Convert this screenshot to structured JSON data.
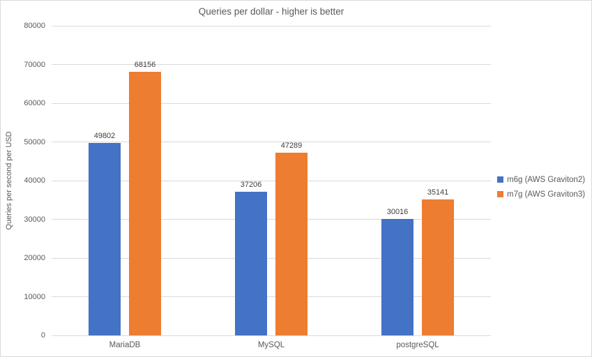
{
  "chart_data": {
    "type": "bar",
    "title": "Queries per dollar - higher is better",
    "ylabel": "Queries per second per USD",
    "xlabel": "",
    "categories": [
      "MariaDB",
      "MySQL",
      "postgreSQL"
    ],
    "series": [
      {
        "name": "m6g (AWS Graviton2)",
        "color": "#4472C4",
        "values": [
          49802,
          37206,
          30016
        ]
      },
      {
        "name": "m7g (AWS Graviton3)",
        "color": "#ED7D31",
        "values": [
          68156,
          47289,
          35141
        ]
      }
    ],
    "ylim": [
      0,
      80000
    ],
    "yticks": [
      0,
      10000,
      20000,
      30000,
      40000,
      50000,
      60000,
      70000,
      80000
    ],
    "grid": true,
    "legend_position": "right",
    "value_labels": true
  },
  "colors": {
    "gridline": "#D9D9D9",
    "frame_border": "#D9D9D9",
    "axis_text": "#595959",
    "value_label_text": "#404040",
    "background": "#FFFFFF"
  }
}
